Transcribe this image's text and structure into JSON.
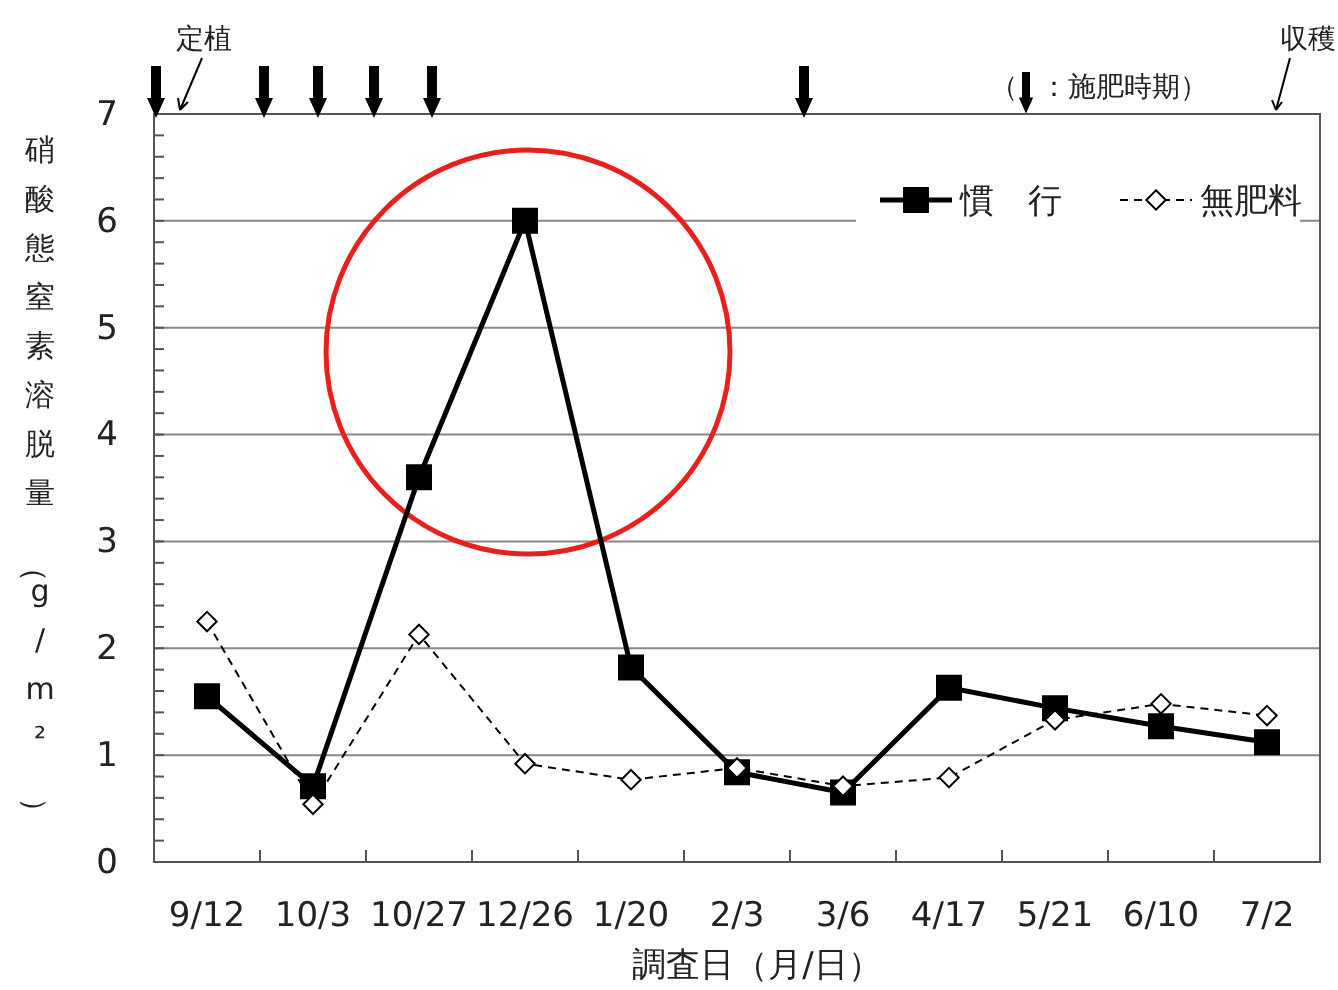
{
  "chart_data": {
    "type": "line",
    "xlabel": "調査日（月/日）",
    "ylabel": "硝酸態窒素溶脱量（g/m²）",
    "categories": [
      "9/12",
      "10/3",
      "10/27",
      "12/26",
      "1/20",
      "2/3",
      "3/6",
      "4/17",
      "5/21",
      "6/10",
      "7/2"
    ],
    "series": [
      {
        "name": "慣　行",
        "color": "#000000",
        "marker": "square",
        "line_style": "solid",
        "values": [
          1.55,
          0.71,
          3.6,
          6.0,
          1.82,
          0.84,
          0.65,
          1.63,
          1.44,
          1.27,
          1.12
        ]
      },
      {
        "name": "無肥料",
        "color": "#000000",
        "marker": "diamond",
        "line_style": "dashed",
        "values": [
          2.25,
          0.54,
          2.13,
          0.92,
          0.77,
          0.88,
          0.71,
          0.79,
          1.33,
          1.48,
          1.37
        ]
      }
    ],
    "ylim": [
      0,
      7
    ],
    "yticks": [
      0,
      1,
      2,
      3,
      4,
      5,
      6,
      7
    ],
    "grid": "y",
    "legend": "top right",
    "annotations": [
      "定植",
      "収穫",
      "（：施肥時期）"
    ]
  }
}
